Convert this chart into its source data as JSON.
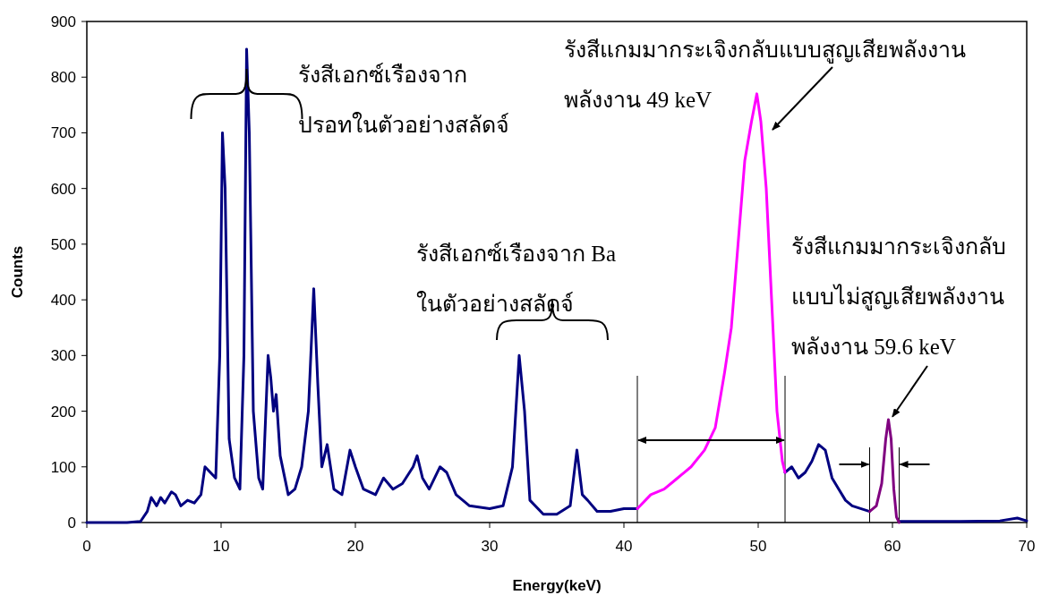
{
  "chart_data": {
    "type": "line",
    "xlabel": "Energy(keV)",
    "ylabel": "Counts",
    "xlim": [
      0,
      70
    ],
    "xticks": [
      0,
      10,
      20,
      30,
      40,
      50,
      60,
      70
    ],
    "ylim": [
      0,
      900
    ],
    "yticks": [
      0,
      100,
      200,
      300,
      400,
      500,
      600,
      700,
      800,
      900
    ],
    "grid": false,
    "series": [
      {
        "color": "#000080",
        "x": [
          0,
          3,
          4,
          4.5,
          4.8,
          5.2,
          5.5,
          5.8,
          6.3,
          6.6,
          7,
          7.5,
          8,
          8.5,
          8.8,
          9.2,
          9.6,
          9.9,
          10.1,
          10.3,
          10.6,
          11,
          11.4,
          11.7,
          11.9,
          12.1,
          12.4,
          12.8,
          13.1,
          13.5,
          13.7,
          13.9,
          14.1,
          14.4,
          15,
          15.5,
          16,
          16.5,
          16.9,
          17.2,
          17.5,
          17.9,
          18.4,
          19,
          19.6,
          20,
          20.6,
          21.5,
          22.1,
          22.8,
          23.5,
          24.3,
          24.6,
          25,
          25.5,
          26.3,
          26.8,
          27.5,
          28.5,
          30,
          31,
          31.7,
          32.2,
          32.6,
          33,
          34,
          35,
          36,
          36.5,
          36.9,
          37.3,
          38,
          39,
          40,
          41,
          46,
          52,
          52.5,
          53,
          53.5,
          54,
          54.5,
          55,
          55.5,
          56,
          56.5,
          57,
          58.3,
          59,
          60.5,
          65,
          68,
          69.3,
          70
        ],
        "values": [
          0,
          0,
          2,
          20,
          45,
          30,
          45,
          35,
          55,
          50,
          30,
          40,
          35,
          50,
          100,
          90,
          80,
          300,
          700,
          600,
          150,
          80,
          60,
          300,
          850,
          700,
          200,
          80,
          60,
          300,
          260,
          200,
          230,
          120,
          50,
          60,
          100,
          200,
          420,
          250,
          100,
          140,
          60,
          50,
          130,
          100,
          60,
          50,
          80,
          60,
          70,
          100,
          120,
          80,
          60,
          100,
          90,
          50,
          30,
          25,
          30,
          100,
          300,
          200,
          40,
          15,
          15,
          30,
          130,
          50,
          40,
          20,
          20,
          25,
          25,
          null,
          90,
          100,
          80,
          90,
          110,
          140,
          130,
          80,
          60,
          40,
          30,
          20,
          null,
          2,
          2,
          3,
          8,
          3
        ]
      },
      {
        "color": "#ff00ff",
        "x": [
          41,
          42,
          43,
          44,
          45,
          46,
          46.8,
          47.5,
          48,
          48.5,
          49,
          49.5,
          49.9,
          50.2,
          50.6,
          51,
          51.4,
          51.8,
          52
        ],
        "values": [
          25,
          50,
          60,
          80,
          100,
          130,
          170,
          270,
          350,
          500,
          650,
          720,
          770,
          720,
          600,
          400,
          200,
          110,
          90
        ]
      },
      {
        "color": "#800080",
        "x": [
          58.3,
          58.8,
          59.2,
          59.5,
          59.7,
          59.9,
          60.1,
          60.3,
          60.5
        ],
        "values": [
          20,
          30,
          70,
          150,
          185,
          150,
          60,
          10,
          0
        ]
      }
    ],
    "ref_lines": [
      {
        "axis": "x",
        "value": 41
      },
      {
        "axis": "x",
        "value": 52
      },
      {
        "axis": "x",
        "value": 58.3
      },
      {
        "axis": "x",
        "value": 60.5
      }
    ],
    "annotations": [
      {
        "text": "รังสีเอกซ์เรืองจาก\nปรอทในตัวอย่างสลัดจ์",
        "x": 11.9,
        "y": 815
      },
      "รังสีเอกซ์เรืองจาก Ba\nในตัวอย่างสลัดจ์",
      "รังสีแกมมากระเจิงกลับแบบสูญเสียพลังงาน\nพลังงาน 49 keV",
      {
        "text": "รังสีแกมมากระเจิงกลับ\nแบบไม่สูญเสียพลังงาน\nพลังงาน 59.6 keV",
        "x": 60,
        "y": 190
      }
    ]
  }
}
